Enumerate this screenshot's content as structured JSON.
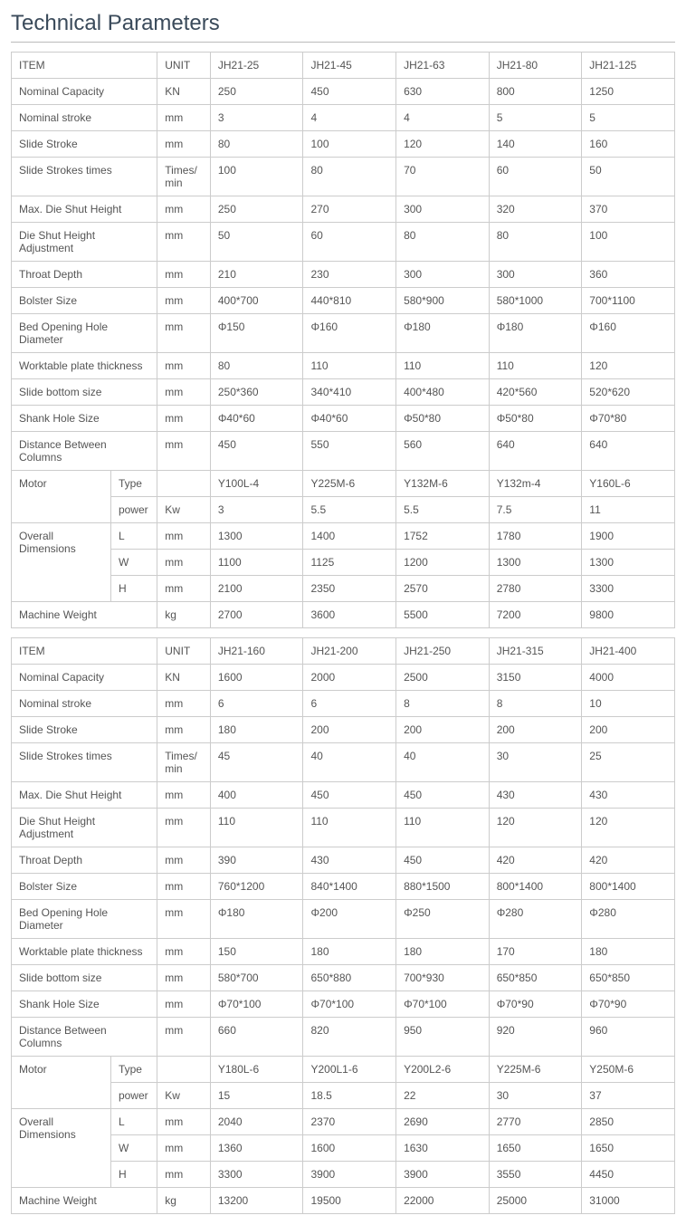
{
  "page_title": "Technical Parameters",
  "colors": {
    "title": "#3a4a5a",
    "border": "#cccccc",
    "text": "#555555",
    "background": "#ffffff"
  },
  "tables": [
    {
      "models": [
        "JH21-25",
        "JH21-45",
        "JH21-63",
        "JH21-80",
        "JH21-125"
      ],
      "header_item": "ITEM",
      "header_unit": "UNIT",
      "rows": [
        {
          "item": "Nominal Capacity",
          "unit": "KN",
          "vals": [
            "250",
            "450",
            "630",
            "800",
            "1250"
          ]
        },
        {
          "item": "Nominal stroke",
          "unit": "mm",
          "vals": [
            "3",
            "4",
            "4",
            "5",
            "5"
          ]
        },
        {
          "item": "Slide Stroke",
          "unit": "mm",
          "vals": [
            "80",
            "100",
            "120",
            "140",
            "160"
          ]
        },
        {
          "item": "Slide Strokes times",
          "unit": "Times/min",
          "vals": [
            "100",
            "80",
            "70",
            "60",
            "50"
          ]
        },
        {
          "item": "Max. Die Shut Height",
          "unit": "mm",
          "vals": [
            "250",
            "270",
            "300",
            "320",
            "370"
          ]
        },
        {
          "item": "Die Shut Height Adjustment",
          "unit": "mm",
          "vals": [
            "50",
            "60",
            "80",
            "80",
            "100"
          ]
        },
        {
          "item": "Throat Depth",
          "unit": "mm",
          "vals": [
            "210",
            "230",
            "300",
            "300",
            "360"
          ]
        },
        {
          "item": "Bolster Size",
          "unit": "mm",
          "vals": [
            "400*700",
            "440*810",
            "580*900",
            "580*1000",
            "700*1100"
          ]
        },
        {
          "item": "Bed Opening Hole Diameter",
          "unit": "mm",
          "vals": [
            "Φ150",
            "Φ160",
            "Φ180",
            "Φ180",
            "Φ160"
          ]
        },
        {
          "item": "Worktable plate thickness",
          "unit": "mm",
          "vals": [
            "80",
            "110",
            "110",
            "110",
            "120"
          ]
        },
        {
          "item": "Slide bottom size",
          "unit": "mm",
          "vals": [
            "250*360",
            "340*410",
            "400*480",
            "420*560",
            "520*620"
          ]
        },
        {
          "item": "Shank Hole Size",
          "unit": "mm",
          "vals": [
            "Φ40*60",
            "Φ40*60",
            "Φ50*80",
            "Φ50*80",
            "Φ70*80"
          ]
        },
        {
          "item": "Distance Between Columns",
          "unit": "mm",
          "vals": [
            "450",
            "550",
            "560",
            "640",
            "640"
          ]
        }
      ],
      "motor": {
        "label": "Motor",
        "type_label": "Type",
        "type_unit": "",
        "type_vals": [
          "Y100L-4",
          "Y225M-6",
          "Y132M-6",
          "Y132m-4",
          "Y160L-6"
        ],
        "power_label": "power",
        "power_unit": "Kw",
        "power_vals": [
          "3",
          "5.5",
          "5.5",
          "7.5",
          "11"
        ]
      },
      "dims": {
        "label": "Overall Dimensions",
        "L": {
          "label": "L",
          "unit": "mm",
          "vals": [
            "1300",
            "1400",
            "1752",
            "1780",
            "1900"
          ]
        },
        "W": {
          "label": "W",
          "unit": "mm",
          "vals": [
            "1100",
            "1125",
            "1200",
            "1300",
            "1300"
          ]
        },
        "H": {
          "label": "H",
          "unit": "mm",
          "vals": [
            "2100",
            "2350",
            "2570",
            "2780",
            "3300"
          ]
        }
      },
      "weight": {
        "item": "Machine Weight",
        "unit": "kg",
        "vals": [
          "2700",
          "3600",
          "5500",
          "7200",
          "9800"
        ]
      }
    },
    {
      "models": [
        "JH21-160",
        "JH21-200",
        "JH21-250",
        "JH21-315",
        "JH21-400"
      ],
      "header_item": "ITEM",
      "header_unit": "UNIT",
      "rows": [
        {
          "item": "Nominal Capacity",
          "unit": "KN",
          "vals": [
            "1600",
            "2000",
            "2500",
            "3150",
            "4000"
          ]
        },
        {
          "item": "Nominal stroke",
          "unit": "mm",
          "vals": [
            "6",
            "6",
            "8",
            "8",
            "10"
          ]
        },
        {
          "item": "Slide Stroke",
          "unit": "mm",
          "vals": [
            "180",
            "200",
            "200",
            "200",
            "200"
          ]
        },
        {
          "item": "Slide Strokes times",
          "unit": "Times/min",
          "vals": [
            "45",
            "40",
            "40",
            "30",
            "25"
          ]
        },
        {
          "item": "Max. Die Shut Height",
          "unit": "mm",
          "vals": [
            "400",
            "450",
            "450",
            "430",
            "430"
          ]
        },
        {
          "item": "Die Shut Height Adjustment",
          "unit": "mm",
          "vals": [
            "110",
            "110",
            "110",
            "120",
            "120"
          ]
        },
        {
          "item": "Throat Depth",
          "unit": "mm",
          "vals": [
            "390",
            "430",
            "450",
            "420",
            "420"
          ]
        },
        {
          "item": "Bolster Size",
          "unit": "mm",
          "vals": [
            "760*1200",
            "840*1400",
            "880*1500",
            "800*1400",
            "800*1400"
          ]
        },
        {
          "item": "Bed Opening Hole Diameter",
          "unit": "mm",
          "vals": [
            "Φ180",
            "Φ200",
            "Φ250",
            "Φ280",
            "Φ280"
          ]
        },
        {
          "item": "Worktable plate thickness",
          "unit": "mm",
          "vals": [
            "150",
            "180",
            "180",
            "170",
            "180"
          ]
        },
        {
          "item": "Slide bottom size",
          "unit": "mm",
          "vals": [
            "580*700",
            "650*880",
            "700*930",
            "650*850",
            "650*850"
          ]
        },
        {
          "item": "Shank Hole Size",
          "unit": "mm",
          "vals": [
            "Φ70*100",
            "Φ70*100",
            "Φ70*100",
            "Φ70*90",
            "Φ70*90"
          ]
        },
        {
          "item": "Distance Between Columns",
          "unit": "mm",
          "vals": [
            "660",
            "820",
            "950",
            "920",
            "960"
          ]
        }
      ],
      "motor": {
        "label": "Motor",
        "type_label": "Type",
        "type_unit": "",
        "type_vals": [
          "Y180L-6",
          "Y200L1-6",
          "Y200L2-6",
          "Y225M-6",
          "Y250M-6"
        ],
        "power_label": "power",
        "power_unit": "Kw",
        "power_vals": [
          "15",
          "18.5",
          "22",
          "30",
          "37"
        ]
      },
      "dims": {
        "label": "Overall Dimensions",
        "L": {
          "label": "L",
          "unit": "mm",
          "vals": [
            "2040",
            "2370",
            "2690",
            "2770",
            "2850"
          ]
        },
        "W": {
          "label": "W",
          "unit": "mm",
          "vals": [
            "1360",
            "1600",
            "1630",
            "1650",
            "1650"
          ]
        },
        "H": {
          "label": "H",
          "unit": "mm",
          "vals": [
            "3300",
            "3900",
            "3900",
            "3550",
            "4450"
          ]
        }
      },
      "weight": {
        "item": "Machine Weight",
        "unit": "kg",
        "vals": [
          "13200",
          "19500",
          "22000",
          "25000",
          "31000"
        ]
      }
    }
  ]
}
